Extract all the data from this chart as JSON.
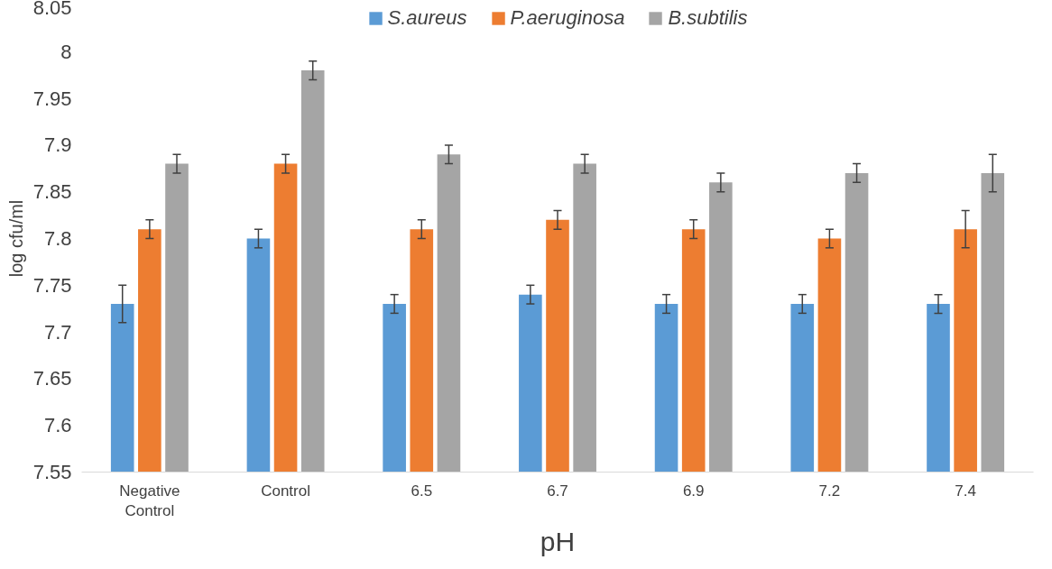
{
  "chart_data": {
    "type": "bar",
    "xlabel": "pH",
    "ylabel": "log cfu/ml",
    "categories": [
      "Negative Control",
      "Control",
      "6.5",
      "6.7",
      "6.9",
      "7.2",
      "7.4"
    ],
    "series": [
      {
        "name": "S.aureus",
        "color": "#5b9bd5",
        "values": [
          7.73,
          7.8,
          7.73,
          7.74,
          7.73,
          7.73,
          7.73
        ],
        "errors": [
          0.02,
          0.01,
          0.01,
          0.01,
          0.01,
          0.01,
          0.01
        ]
      },
      {
        "name": "P.aeruginosa",
        "color": "#ed7d31",
        "values": [
          7.81,
          7.88,
          7.81,
          7.82,
          7.81,
          7.8,
          7.81
        ],
        "errors": [
          0.01,
          0.01,
          0.01,
          0.01,
          0.01,
          0.01,
          0.02
        ]
      },
      {
        "name": "B.subtilis",
        "color": "#a5a5a5",
        "values": [
          7.88,
          7.98,
          7.89,
          7.88,
          7.86,
          7.87,
          7.87
        ],
        "errors": [
          0.01,
          0.01,
          0.01,
          0.01,
          0.01,
          0.01,
          0.02
        ]
      }
    ],
    "ylim": [
      7.55,
      8.05
    ],
    "yticks": [
      7.55,
      7.6,
      7.65,
      7.7,
      7.75,
      7.8,
      7.85,
      7.9,
      7.95,
      8,
      8.05
    ],
    "grid": false,
    "legend": "top"
  }
}
